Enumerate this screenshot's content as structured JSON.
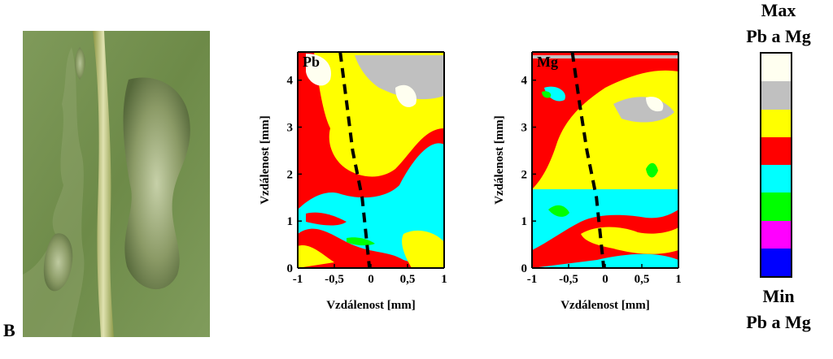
{
  "figure": {
    "panel_letter": "B"
  },
  "legend": {
    "max_line1": "Max",
    "max_line2": "Pb a Mg",
    "min_line1": "Min",
    "min_line2": "Pb a Mg",
    "levels_top_to_bottom": [
      "#fffff0",
      "#c0c0c0",
      "#ffff00",
      "#ff0000",
      "#00ffff",
      "#00ff00",
      "#ff00ff",
      "#0000ff"
    ]
  },
  "chart_data": [
    {
      "type": "heatmap",
      "label": "Pb",
      "xlabel": "Vzdálenost [mm]",
      "ylabel": "Vzdálenost [mm]",
      "xlim": [
        -1,
        1
      ],
      "ylim": [
        0,
        4.6
      ],
      "xticks": [
        -1,
        -0.5,
        0,
        0.5,
        1
      ],
      "xtick_labels": [
        "-1",
        "-0,5",
        "0",
        "0,5",
        "1"
      ],
      "yticks": [
        0,
        1,
        2,
        3,
        4
      ],
      "ytick_labels": [
        "0",
        "1",
        "2",
        "3",
        "4"
      ],
      "midrib_line": [
        [
          -0.42,
          4.6
        ],
        [
          -0.33,
          3.5
        ],
        [
          -0.25,
          2.5
        ],
        [
          -0.12,
          1.5
        ],
        [
          -0.02,
          0
        ]
      ]
    },
    {
      "type": "heatmap",
      "label": "Mg",
      "xlabel": "Vzdálenost [mm]",
      "ylabel": "Vzdálenost [mm]",
      "xlim": [
        -1,
        1
      ],
      "ylim": [
        0,
        4.6
      ],
      "xticks": [
        -1,
        -0.5,
        0,
        0.5,
        1
      ],
      "xtick_labels": [
        "-1",
        "-0,5",
        "0",
        "0,5",
        "1"
      ],
      "yticks": [
        0,
        1,
        2,
        3,
        4
      ],
      "ytick_labels": [
        "0",
        "1",
        "2",
        "3",
        "4"
      ],
      "midrib_line": [
        [
          -0.45,
          4.6
        ],
        [
          -0.35,
          3.5
        ],
        [
          -0.25,
          2.5
        ],
        [
          -0.12,
          1.5
        ],
        [
          -0.02,
          0
        ]
      ]
    }
  ]
}
